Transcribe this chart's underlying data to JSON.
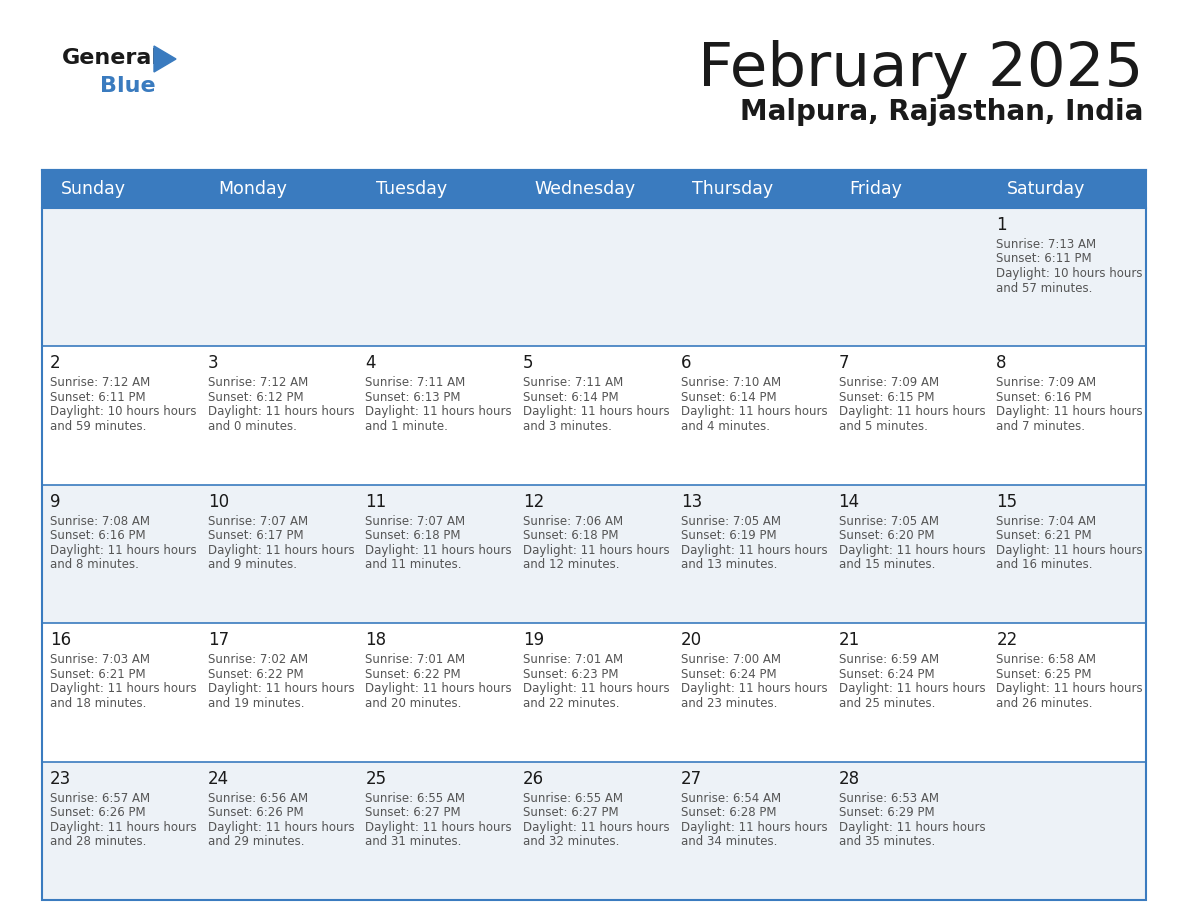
{
  "title": "February 2025",
  "subtitle": "Malpura, Rajasthan, India",
  "header_bg_color": "#3a7bbf",
  "header_text_color": "#ffffff",
  "cell_bg_even": "#edf2f7",
  "cell_bg_odd": "#ffffff",
  "border_color": "#3a7bbf",
  "day_names": [
    "Sunday",
    "Monday",
    "Tuesday",
    "Wednesday",
    "Thursday",
    "Friday",
    "Saturday"
  ],
  "title_color": "#1a1a1a",
  "subtitle_color": "#1a1a1a",
  "day_number_color": "#1a1a1a",
  "info_color": "#555555",
  "days": [
    {
      "day": 1,
      "col": 6,
      "row": 0,
      "sunrise": "7:13 AM",
      "sunset": "6:11 PM",
      "daylight": "10 hours and 57 minutes."
    },
    {
      "day": 2,
      "col": 0,
      "row": 1,
      "sunrise": "7:12 AM",
      "sunset": "6:11 PM",
      "daylight": "10 hours and 59 minutes."
    },
    {
      "day": 3,
      "col": 1,
      "row": 1,
      "sunrise": "7:12 AM",
      "sunset": "6:12 PM",
      "daylight": "11 hours and 0 minutes."
    },
    {
      "day": 4,
      "col": 2,
      "row": 1,
      "sunrise": "7:11 AM",
      "sunset": "6:13 PM",
      "daylight": "11 hours and 1 minute."
    },
    {
      "day": 5,
      "col": 3,
      "row": 1,
      "sunrise": "7:11 AM",
      "sunset": "6:14 PM",
      "daylight": "11 hours and 3 minutes."
    },
    {
      "day": 6,
      "col": 4,
      "row": 1,
      "sunrise": "7:10 AM",
      "sunset": "6:14 PM",
      "daylight": "11 hours and 4 minutes."
    },
    {
      "day": 7,
      "col": 5,
      "row": 1,
      "sunrise": "7:09 AM",
      "sunset": "6:15 PM",
      "daylight": "11 hours and 5 minutes."
    },
    {
      "day": 8,
      "col": 6,
      "row": 1,
      "sunrise": "7:09 AM",
      "sunset": "6:16 PM",
      "daylight": "11 hours and 7 minutes."
    },
    {
      "day": 9,
      "col": 0,
      "row": 2,
      "sunrise": "7:08 AM",
      "sunset": "6:16 PM",
      "daylight": "11 hours and 8 minutes."
    },
    {
      "day": 10,
      "col": 1,
      "row": 2,
      "sunrise": "7:07 AM",
      "sunset": "6:17 PM",
      "daylight": "11 hours and 9 minutes."
    },
    {
      "day": 11,
      "col": 2,
      "row": 2,
      "sunrise": "7:07 AM",
      "sunset": "6:18 PM",
      "daylight": "11 hours and 11 minutes."
    },
    {
      "day": 12,
      "col": 3,
      "row": 2,
      "sunrise": "7:06 AM",
      "sunset": "6:18 PM",
      "daylight": "11 hours and 12 minutes."
    },
    {
      "day": 13,
      "col": 4,
      "row": 2,
      "sunrise": "7:05 AM",
      "sunset": "6:19 PM",
      "daylight": "11 hours and 13 minutes."
    },
    {
      "day": 14,
      "col": 5,
      "row": 2,
      "sunrise": "7:05 AM",
      "sunset": "6:20 PM",
      "daylight": "11 hours and 15 minutes."
    },
    {
      "day": 15,
      "col": 6,
      "row": 2,
      "sunrise": "7:04 AM",
      "sunset": "6:21 PM",
      "daylight": "11 hours and 16 minutes."
    },
    {
      "day": 16,
      "col": 0,
      "row": 3,
      "sunrise": "7:03 AM",
      "sunset": "6:21 PM",
      "daylight": "11 hours and 18 minutes."
    },
    {
      "day": 17,
      "col": 1,
      "row": 3,
      "sunrise": "7:02 AM",
      "sunset": "6:22 PM",
      "daylight": "11 hours and 19 minutes."
    },
    {
      "day": 18,
      "col": 2,
      "row": 3,
      "sunrise": "7:01 AM",
      "sunset": "6:22 PM",
      "daylight": "11 hours and 20 minutes."
    },
    {
      "day": 19,
      "col": 3,
      "row": 3,
      "sunrise": "7:01 AM",
      "sunset": "6:23 PM",
      "daylight": "11 hours and 22 minutes."
    },
    {
      "day": 20,
      "col": 4,
      "row": 3,
      "sunrise": "7:00 AM",
      "sunset": "6:24 PM",
      "daylight": "11 hours and 23 minutes."
    },
    {
      "day": 21,
      "col": 5,
      "row": 3,
      "sunrise": "6:59 AM",
      "sunset": "6:24 PM",
      "daylight": "11 hours and 25 minutes."
    },
    {
      "day": 22,
      "col": 6,
      "row": 3,
      "sunrise": "6:58 AM",
      "sunset": "6:25 PM",
      "daylight": "11 hours and 26 minutes."
    },
    {
      "day": 23,
      "col": 0,
      "row": 4,
      "sunrise": "6:57 AM",
      "sunset": "6:26 PM",
      "daylight": "11 hours and 28 minutes."
    },
    {
      "day": 24,
      "col": 1,
      "row": 4,
      "sunrise": "6:56 AM",
      "sunset": "6:26 PM",
      "daylight": "11 hours and 29 minutes."
    },
    {
      "day": 25,
      "col": 2,
      "row": 4,
      "sunrise": "6:55 AM",
      "sunset": "6:27 PM",
      "daylight": "11 hours and 31 minutes."
    },
    {
      "day": 26,
      "col": 3,
      "row": 4,
      "sunrise": "6:55 AM",
      "sunset": "6:27 PM",
      "daylight": "11 hours and 32 minutes."
    },
    {
      "day": 27,
      "col": 4,
      "row": 4,
      "sunrise": "6:54 AM",
      "sunset": "6:28 PM",
      "daylight": "11 hours and 34 minutes."
    },
    {
      "day": 28,
      "col": 5,
      "row": 4,
      "sunrise": "6:53 AM",
      "sunset": "6:29 PM",
      "daylight": "11 hours and 35 minutes."
    }
  ]
}
